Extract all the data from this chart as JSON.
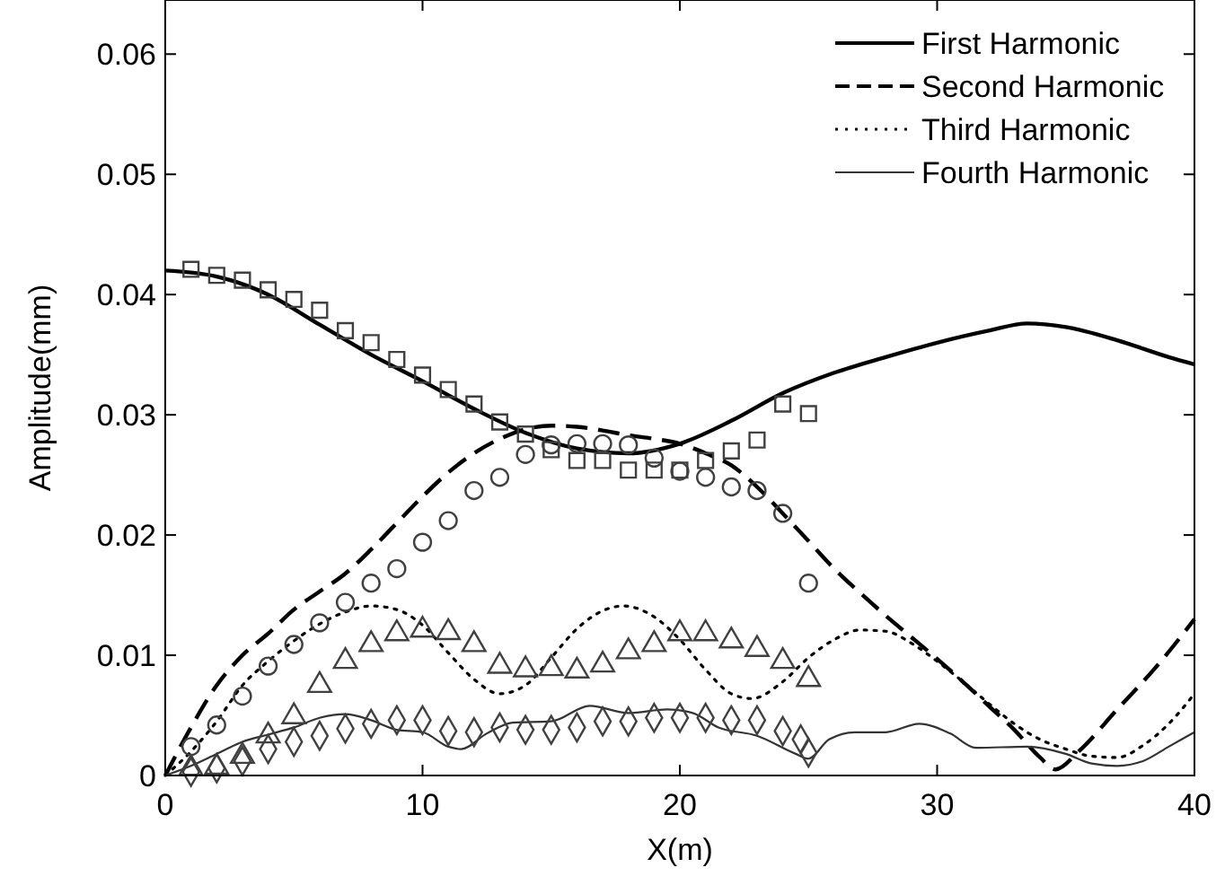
{
  "chart_data": {
    "type": "line",
    "xlabel": "X(m)",
    "ylabel": "Amplitude(mm)",
    "xlim": [
      0,
      40
    ],
    "ylim": [
      0,
      0.0645
    ],
    "xticks": [
      0,
      10,
      20,
      30,
      40
    ],
    "yticks": [
      0,
      0.01,
      0.02,
      0.03,
      0.04,
      0.05,
      0.06
    ],
    "grid": false,
    "legend": "top right",
    "series": [
      {
        "name": "First Harmonic",
        "type": "line",
        "color": "#000000",
        "line_style": "solid",
        "x": [
          0,
          2,
          4,
          6,
          8,
          10,
          12,
          14,
          16,
          18,
          20,
          22,
          24,
          26,
          28,
          30,
          32,
          33.5,
          35,
          37,
          39,
          40
        ],
        "values": [
          0.042,
          0.0415,
          0.04,
          0.0375,
          0.035,
          0.0328,
          0.0305,
          0.0285,
          0.0272,
          0.0268,
          0.0276,
          0.0295,
          0.0318,
          0.0335,
          0.0348,
          0.036,
          0.037,
          0.0376,
          0.0373,
          0.0362,
          0.0348,
          0.0342
        ]
      },
      {
        "name": "Second Harmonic",
        "type": "line",
        "color": "#000000",
        "line_style": "dashed",
        "x": [
          0,
          1,
          2,
          3,
          4,
          5,
          6,
          7,
          8,
          9,
          10,
          11,
          12,
          13,
          14,
          15,
          16,
          17,
          18,
          19,
          20,
          21,
          22,
          23,
          24,
          25,
          26,
          27,
          28,
          29,
          30,
          31,
          32,
          33,
          34,
          34.6,
          35.5,
          37,
          38.5,
          40
        ],
        "values": [
          0,
          0.004,
          0.0075,
          0.01,
          0.0118,
          0.0138,
          0.0153,
          0.0168,
          0.0188,
          0.021,
          0.0232,
          0.0252,
          0.0268,
          0.028,
          0.0288,
          0.0291,
          0.029,
          0.0287,
          0.0283,
          0.028,
          0.0276,
          0.0268,
          0.0258,
          0.024,
          0.0218,
          0.0195,
          0.0172,
          0.0152,
          0.0133,
          0.0115,
          0.0097,
          0.0078,
          0.0058,
          0.0038,
          0.0015,
          0.0005,
          0.002,
          0.0055,
          0.009,
          0.013
        ]
      },
      {
        "name": "Third Harmonic",
        "type": "line",
        "color": "#000000",
        "line_style": "dotted",
        "x": [
          0,
          1,
          2,
          3,
          4,
          5,
          6,
          7,
          8,
          9,
          10,
          11,
          12,
          13,
          14,
          15,
          16,
          17,
          17.8,
          19,
          20,
          21,
          22,
          22.8,
          24,
          25,
          26,
          27,
          28,
          29,
          30,
          31,
          32,
          33,
          34,
          35,
          36,
          37,
          38,
          39,
          40
        ],
        "values": [
          0,
          0.002,
          0.0045,
          0.0075,
          0.0095,
          0.0112,
          0.0126,
          0.0136,
          0.0141,
          0.0138,
          0.0125,
          0.0102,
          0.008,
          0.0068,
          0.0075,
          0.0098,
          0.0122,
          0.0137,
          0.0141,
          0.0132,
          0.0113,
          0.0088,
          0.0068,
          0.0064,
          0.0078,
          0.0098,
          0.0113,
          0.0121,
          0.012,
          0.011,
          0.0095,
          0.0078,
          0.006,
          0.0043,
          0.003,
          0.0022,
          0.0016,
          0.0015,
          0.0025,
          0.0043,
          0.0068
        ]
      },
      {
        "name": "Fourth Harmonic",
        "type": "line",
        "color": "#333333",
        "line_style": "solid",
        "x": [
          0,
          1,
          2,
          3,
          4,
          5,
          6,
          7,
          8,
          9,
          10,
          11,
          11.5,
          12.5,
          13.5,
          15,
          16.5,
          18,
          19.5,
          20.5,
          21.5,
          23,
          24.5,
          25,
          25.8,
          26.8,
          28,
          29.3,
          30.5,
          31.5,
          33.5,
          35,
          36,
          37,
          38,
          39,
          40
        ],
        "values": [
          0,
          0.0008,
          0.0018,
          0.0028,
          0.0034,
          0.004,
          0.0048,
          0.0051,
          0.0046,
          0.0038,
          0.0036,
          0.0024,
          0.0022,
          0.0035,
          0.0044,
          0.0045,
          0.0058,
          0.0052,
          0.0055,
          0.0052,
          0.004,
          0.0033,
          0.0018,
          0.0014,
          0.003,
          0.0036,
          0.0036,
          0.0043,
          0.0035,
          0.0023,
          0.0024,
          0.0018,
          0.001,
          0.0008,
          0.0012,
          0.0024,
          0.0036
        ]
      },
      {
        "type": "scatter",
        "marker": "square",
        "color": "#404040",
        "x": [
          1,
          2,
          3,
          4,
          5,
          6,
          7,
          8,
          9,
          10,
          11,
          12,
          13,
          14,
          15,
          16,
          17,
          18,
          19,
          20,
          21,
          22,
          23,
          24,
          25
        ],
        "values": [
          0.0421,
          0.0416,
          0.0412,
          0.0404,
          0.0396,
          0.0387,
          0.037,
          0.036,
          0.0346,
          0.0333,
          0.0321,
          0.0309,
          0.0294,
          0.0284,
          0.0271,
          0.0262,
          0.0262,
          0.0254,
          0.0254,
          0.0254,
          0.0262,
          0.027,
          0.0279,
          0.0309,
          0.0301
        ]
      },
      {
        "type": "scatter",
        "marker": "circle",
        "color": "#404040",
        "x": [
          1,
          2,
          3,
          4,
          5,
          6,
          7,
          8,
          9,
          10,
          11,
          12,
          13,
          14,
          15,
          16,
          17,
          18,
          19,
          20,
          21,
          22,
          23,
          24,
          25
        ],
        "values": [
          0.0024,
          0.0042,
          0.0066,
          0.0091,
          0.0109,
          0.0127,
          0.0144,
          0.016,
          0.0172,
          0.0194,
          0.0212,
          0.0237,
          0.0248,
          0.0267,
          0.0275,
          0.0276,
          0.0276,
          0.0275,
          0.0264,
          0.0253,
          0.0248,
          0.024,
          0.0237,
          0.0218,
          0.016
        ]
      },
      {
        "type": "scatter",
        "marker": "triangle",
        "color": "#404040",
        "x": [
          1,
          2,
          3,
          4,
          5,
          6,
          7,
          8,
          9,
          10,
          11,
          12,
          13,
          14,
          15,
          16,
          17,
          18,
          19,
          20,
          21,
          22,
          23,
          24,
          25
        ],
        "values": [
          0.0006,
          0.0007,
          0.0016,
          0.0033,
          0.0049,
          0.0075,
          0.0095,
          0.0109,
          0.0118,
          0.0121,
          0.0119,
          0.0109,
          0.0091,
          0.0088,
          0.0089,
          0.0087,
          0.0092,
          0.0103,
          0.0109,
          0.0118,
          0.0118,
          0.0112,
          0.0105,
          0.0095,
          0.008
        ]
      },
      {
        "type": "scatter",
        "marker": "diamond",
        "color": "#404040",
        "x": [
          1,
          2,
          3,
          4,
          5,
          6,
          7,
          8,
          9,
          10,
          11,
          12,
          13,
          14,
          15,
          16,
          17,
          18,
          19,
          20,
          21,
          22,
          23,
          24,
          24.7,
          25
        ],
        "values": [
          0.0003,
          0.0006,
          0.0012,
          0.0022,
          0.0028,
          0.0033,
          0.0039,
          0.0043,
          0.0046,
          0.0046,
          0.0037,
          0.0036,
          0.004,
          0.0038,
          0.0038,
          0.004,
          0.0045,
          0.0045,
          0.0048,
          0.0048,
          0.0048,
          0.0046,
          0.0046,
          0.0037,
          0.003,
          0.0019
        ]
      }
    ]
  }
}
